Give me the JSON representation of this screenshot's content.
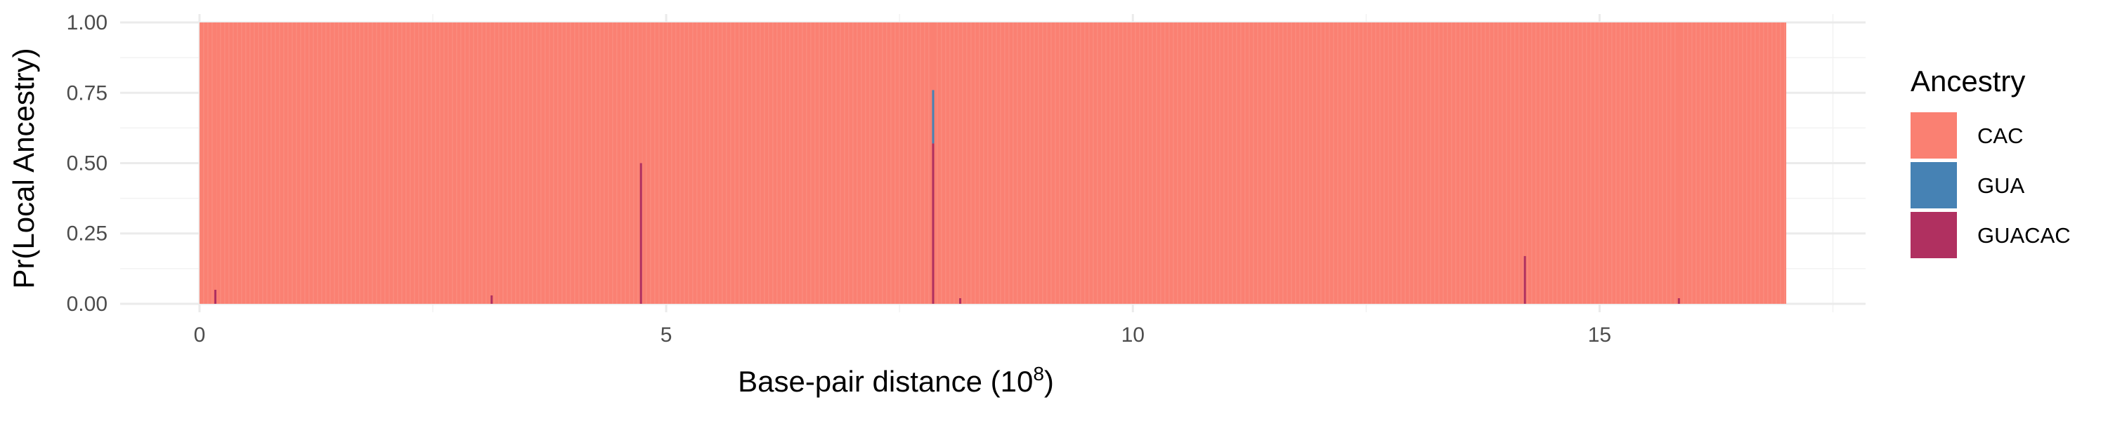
{
  "chart_data": {
    "type": "bar",
    "title": "",
    "xlabel": "Base-pair distance (10",
    "xlabel_superscript": "8",
    "xlabel_suffix": ")",
    "ylabel": "Pr(Local Ancestry)",
    "xlim": [
      -0.85,
      17.85
    ],
    "ylim": [
      -0.03,
      1.03
    ],
    "x_ticks": [
      0,
      5,
      10,
      15
    ],
    "x_tick_labels": [
      "0",
      "5",
      "10",
      "15"
    ],
    "y_ticks": [
      0,
      0.25,
      0.5,
      0.75,
      1.0
    ],
    "y_tick_labels": [
      "0.00",
      "0.25",
      "0.50",
      "0.75",
      "1.00"
    ],
    "grid": true,
    "legend_position": "right",
    "legend_title": "Ancestry",
    "stacked": true,
    "x_extent": [
      0,
      17
    ],
    "base_series": "CAC",
    "series": [
      {
        "name": "CAC",
        "color": "#FA8072"
      },
      {
        "name": "GUA",
        "color": "#4682B4"
      },
      {
        "name": "GUACAC",
        "color": "#B03060"
      }
    ],
    "deviations": [
      {
        "x": 0.17,
        "values": {
          "CAC": 0.95,
          "GUA": 0.0,
          "GUACAC": 0.05
        }
      },
      {
        "x": 3.13,
        "values": {
          "CAC": 0.97,
          "GUA": 0.0,
          "GUACAC": 0.03
        }
      },
      {
        "x": 4.73,
        "values": {
          "CAC": 0.5,
          "GUA": 0.0,
          "GUACAC": 0.5
        }
      },
      {
        "x": 7.86,
        "values": {
          "CAC": 0.24,
          "GUA": 0.19,
          "GUACAC": 0.57
        }
      },
      {
        "x": 8.15,
        "values": {
          "CAC": 0.98,
          "GUA": 0.0,
          "GUACAC": 0.02
        }
      },
      {
        "x": 14.2,
        "values": {
          "CAC": 0.83,
          "GUA": 0.0,
          "GUACAC": 0.17
        }
      },
      {
        "x": 15.85,
        "values": {
          "CAC": 0.98,
          "GUA": 0.0,
          "GUACAC": 0.02
        }
      }
    ]
  }
}
